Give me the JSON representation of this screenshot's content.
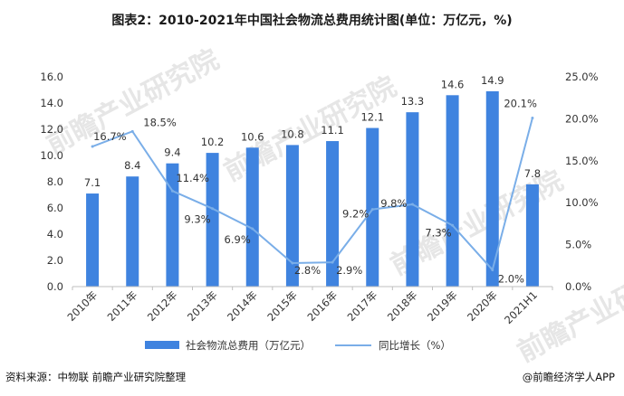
{
  "header": {
    "title": "图表2：2010-2021年中国社会物流总费用统计图(单位：万亿元，%)"
  },
  "footer": {
    "source": "资料来源：中物联 前瞻产业研究院整理",
    "brand": "@前瞻经济学人APP"
  },
  "watermark": {
    "text": "前瞻产业研究院"
  },
  "colors": {
    "bar": "#3f83df",
    "line": "#7aaee8",
    "axis": "#bfbfbf",
    "text": "#333333"
  },
  "chart_data": {
    "type": "bar+line",
    "title": "2010-2021年中国社会物流总费用统计图(单位：万亿元，%)",
    "categories": [
      "2010年",
      "2011年",
      "2012年",
      "2013年",
      "2014年",
      "2015年",
      "2016年",
      "2017年",
      "2018年",
      "2019年",
      "2020年",
      "2021H1"
    ],
    "series": [
      {
        "name": "社会物流总费用（万亿元）",
        "type": "bar",
        "axis": "left",
        "values": [
          7.1,
          8.4,
          9.4,
          10.2,
          10.6,
          10.8,
          11.1,
          12.1,
          13.3,
          14.6,
          14.9,
          7.8
        ],
        "labels": [
          "7.1",
          "8.4",
          "9.4",
          "10.2",
          "10.6",
          "10.8",
          "11.1",
          "12.1",
          "13.3",
          "14.6",
          "14.9",
          "7.8"
        ]
      },
      {
        "name": "同比增长（%）",
        "type": "line",
        "axis": "right",
        "values": [
          16.7,
          18.5,
          11.4,
          9.3,
          6.9,
          2.8,
          2.9,
          9.2,
          9.8,
          7.3,
          2.0,
          20.1
        ],
        "labels": [
          "16.7%",
          "18.5%",
          "11.4%",
          "9.3%",
          "6.9%",
          "2.8%",
          "2.9%",
          "9.2%",
          "9.8%",
          "7.3%",
          "2.0%",
          "20.1%"
        ]
      }
    ],
    "y_left": {
      "min": 0,
      "max": 16,
      "step": 2,
      "ticks": [
        "0.0",
        "2.0",
        "4.0",
        "6.0",
        "8.0",
        "10.0",
        "12.0",
        "14.0",
        "16.0"
      ]
    },
    "y_right": {
      "min": 0,
      "max": 25,
      "step": 5,
      "ticks": [
        "0.0%",
        "5.0%",
        "10.0%",
        "15.0%",
        "20.0%",
        "25.0%"
      ]
    },
    "legend": {
      "position": "bottom",
      "items": [
        "社会物流总费用（万亿元）",
        "同比增长（%）"
      ]
    }
  }
}
